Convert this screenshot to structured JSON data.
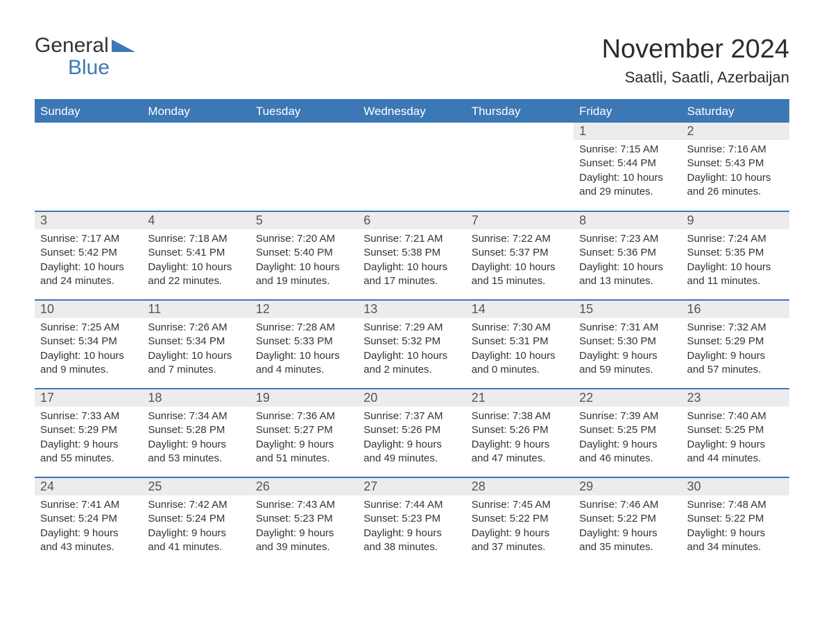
{
  "logo": {
    "general": "General",
    "blue": "Blue"
  },
  "title": "November 2024",
  "location": "Saatli, Saatli, Azerbaijan",
  "colors": {
    "header_bg": "#3b78b5",
    "header_text": "#ffffff",
    "daynum_bg": "#ececec",
    "row_divider": "#3b78b5",
    "body_text": "#333333",
    "background": "#ffffff"
  },
  "typography": {
    "title_fontsize": 38,
    "location_fontsize": 22,
    "weekday_fontsize": 17,
    "daynum_fontsize": 18,
    "body_fontsize": 15
  },
  "weekdays": [
    "Sunday",
    "Monday",
    "Tuesday",
    "Wednesday",
    "Thursday",
    "Friday",
    "Saturday"
  ],
  "weeks": [
    [
      {
        "day": "",
        "sunrise": "",
        "sunset": "",
        "daylight": "",
        "empty": true
      },
      {
        "day": "",
        "sunrise": "",
        "sunset": "",
        "daylight": "",
        "empty": true
      },
      {
        "day": "",
        "sunrise": "",
        "sunset": "",
        "daylight": "",
        "empty": true
      },
      {
        "day": "",
        "sunrise": "",
        "sunset": "",
        "daylight": "",
        "empty": true
      },
      {
        "day": "",
        "sunrise": "",
        "sunset": "",
        "daylight": "",
        "empty": true
      },
      {
        "day": "1",
        "sunrise": "Sunrise: 7:15 AM",
        "sunset": "Sunset: 5:44 PM",
        "daylight": "Daylight: 10 hours and 29 minutes."
      },
      {
        "day": "2",
        "sunrise": "Sunrise: 7:16 AM",
        "sunset": "Sunset: 5:43 PM",
        "daylight": "Daylight: 10 hours and 26 minutes."
      }
    ],
    [
      {
        "day": "3",
        "sunrise": "Sunrise: 7:17 AM",
        "sunset": "Sunset: 5:42 PM",
        "daylight": "Daylight: 10 hours and 24 minutes."
      },
      {
        "day": "4",
        "sunrise": "Sunrise: 7:18 AM",
        "sunset": "Sunset: 5:41 PM",
        "daylight": "Daylight: 10 hours and 22 minutes."
      },
      {
        "day": "5",
        "sunrise": "Sunrise: 7:20 AM",
        "sunset": "Sunset: 5:40 PM",
        "daylight": "Daylight: 10 hours and 19 minutes."
      },
      {
        "day": "6",
        "sunrise": "Sunrise: 7:21 AM",
        "sunset": "Sunset: 5:38 PM",
        "daylight": "Daylight: 10 hours and 17 minutes."
      },
      {
        "day": "7",
        "sunrise": "Sunrise: 7:22 AM",
        "sunset": "Sunset: 5:37 PM",
        "daylight": "Daylight: 10 hours and 15 minutes."
      },
      {
        "day": "8",
        "sunrise": "Sunrise: 7:23 AM",
        "sunset": "Sunset: 5:36 PM",
        "daylight": "Daylight: 10 hours and 13 minutes."
      },
      {
        "day": "9",
        "sunrise": "Sunrise: 7:24 AM",
        "sunset": "Sunset: 5:35 PM",
        "daylight": "Daylight: 10 hours and 11 minutes."
      }
    ],
    [
      {
        "day": "10",
        "sunrise": "Sunrise: 7:25 AM",
        "sunset": "Sunset: 5:34 PM",
        "daylight": "Daylight: 10 hours and 9 minutes."
      },
      {
        "day": "11",
        "sunrise": "Sunrise: 7:26 AM",
        "sunset": "Sunset: 5:34 PM",
        "daylight": "Daylight: 10 hours and 7 minutes."
      },
      {
        "day": "12",
        "sunrise": "Sunrise: 7:28 AM",
        "sunset": "Sunset: 5:33 PM",
        "daylight": "Daylight: 10 hours and 4 minutes."
      },
      {
        "day": "13",
        "sunrise": "Sunrise: 7:29 AM",
        "sunset": "Sunset: 5:32 PM",
        "daylight": "Daylight: 10 hours and 2 minutes."
      },
      {
        "day": "14",
        "sunrise": "Sunrise: 7:30 AM",
        "sunset": "Sunset: 5:31 PM",
        "daylight": "Daylight: 10 hours and 0 minutes."
      },
      {
        "day": "15",
        "sunrise": "Sunrise: 7:31 AM",
        "sunset": "Sunset: 5:30 PM",
        "daylight": "Daylight: 9 hours and 59 minutes."
      },
      {
        "day": "16",
        "sunrise": "Sunrise: 7:32 AM",
        "sunset": "Sunset: 5:29 PM",
        "daylight": "Daylight: 9 hours and 57 minutes."
      }
    ],
    [
      {
        "day": "17",
        "sunrise": "Sunrise: 7:33 AM",
        "sunset": "Sunset: 5:29 PM",
        "daylight": "Daylight: 9 hours and 55 minutes."
      },
      {
        "day": "18",
        "sunrise": "Sunrise: 7:34 AM",
        "sunset": "Sunset: 5:28 PM",
        "daylight": "Daylight: 9 hours and 53 minutes."
      },
      {
        "day": "19",
        "sunrise": "Sunrise: 7:36 AM",
        "sunset": "Sunset: 5:27 PM",
        "daylight": "Daylight: 9 hours and 51 minutes."
      },
      {
        "day": "20",
        "sunrise": "Sunrise: 7:37 AM",
        "sunset": "Sunset: 5:26 PM",
        "daylight": "Daylight: 9 hours and 49 minutes."
      },
      {
        "day": "21",
        "sunrise": "Sunrise: 7:38 AM",
        "sunset": "Sunset: 5:26 PM",
        "daylight": "Daylight: 9 hours and 47 minutes."
      },
      {
        "day": "22",
        "sunrise": "Sunrise: 7:39 AM",
        "sunset": "Sunset: 5:25 PM",
        "daylight": "Daylight: 9 hours and 46 minutes."
      },
      {
        "day": "23",
        "sunrise": "Sunrise: 7:40 AM",
        "sunset": "Sunset: 5:25 PM",
        "daylight": "Daylight: 9 hours and 44 minutes."
      }
    ],
    [
      {
        "day": "24",
        "sunrise": "Sunrise: 7:41 AM",
        "sunset": "Sunset: 5:24 PM",
        "daylight": "Daylight: 9 hours and 43 minutes."
      },
      {
        "day": "25",
        "sunrise": "Sunrise: 7:42 AM",
        "sunset": "Sunset: 5:24 PM",
        "daylight": "Daylight: 9 hours and 41 minutes."
      },
      {
        "day": "26",
        "sunrise": "Sunrise: 7:43 AM",
        "sunset": "Sunset: 5:23 PM",
        "daylight": "Daylight: 9 hours and 39 minutes."
      },
      {
        "day": "27",
        "sunrise": "Sunrise: 7:44 AM",
        "sunset": "Sunset: 5:23 PM",
        "daylight": "Daylight: 9 hours and 38 minutes."
      },
      {
        "day": "28",
        "sunrise": "Sunrise: 7:45 AM",
        "sunset": "Sunset: 5:22 PM",
        "daylight": "Daylight: 9 hours and 37 minutes."
      },
      {
        "day": "29",
        "sunrise": "Sunrise: 7:46 AM",
        "sunset": "Sunset: 5:22 PM",
        "daylight": "Daylight: 9 hours and 35 minutes."
      },
      {
        "day": "30",
        "sunrise": "Sunrise: 7:48 AM",
        "sunset": "Sunset: 5:22 PM",
        "daylight": "Daylight: 9 hours and 34 minutes."
      }
    ]
  ]
}
